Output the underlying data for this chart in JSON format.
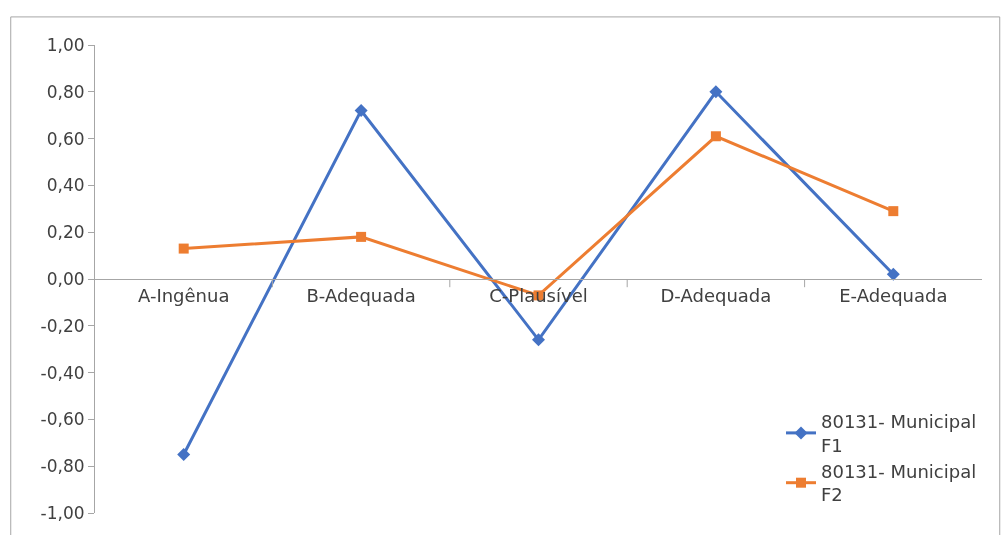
{
  "chart_data": {
    "type": "line",
    "categories": [
      "A-Ingênua",
      "B-Adequada",
      "C-Plausível",
      "D-Adequada",
      "E-Adequada"
    ],
    "series": [
      {
        "name": "80131- Municipal F1",
        "color": "#4472c4",
        "marker": "diamond",
        "values": [
          -0.75,
          0.72,
          -0.26,
          0.8,
          0.02
        ]
      },
      {
        "name": "80131- Municipal F2",
        "color": "#ed7d31",
        "marker": "square",
        "values": [
          0.13,
          0.18,
          -0.07,
          0.61,
          0.29
        ]
      }
    ],
    "ylim": [
      -1,
      1
    ],
    "yticks": [
      {
        "value": -1,
        "label": "-1,00"
      },
      {
        "value": -0.8,
        "label": "-0,80"
      },
      {
        "value": -0.6,
        "label": "-0,60"
      },
      {
        "value": -0.4,
        "label": "-0,40"
      },
      {
        "value": -0.2,
        "label": "-0,20"
      },
      {
        "value": 0,
        "label": "0,00"
      },
      {
        "value": 0.2,
        "label": "0,20"
      },
      {
        "value": 0.4,
        "label": "0,40"
      },
      {
        "value": 0.6,
        "label": "0,60"
      },
      {
        "value": 0.8,
        "label": "0,80"
      },
      {
        "value": 1,
        "label": "1,00"
      }
    ],
    "legend": "bottom right",
    "line_style": "solid"
  }
}
